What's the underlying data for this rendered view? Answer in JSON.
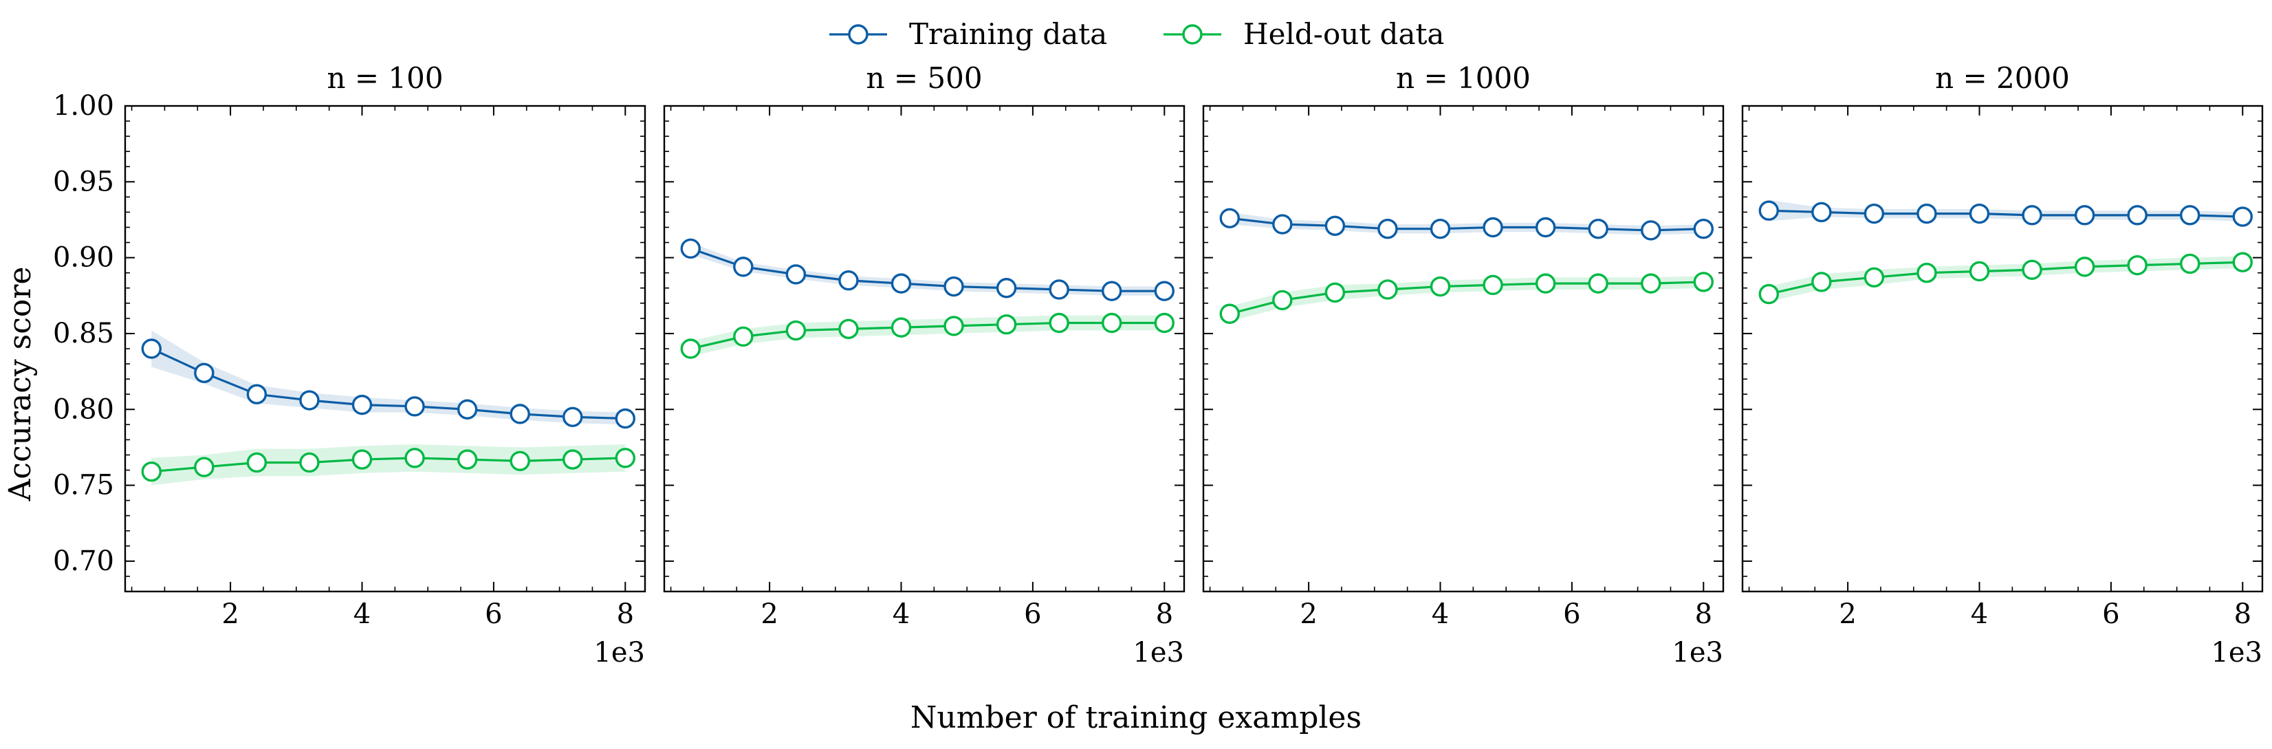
{
  "figure": {
    "xlabel": "Number of training examples",
    "ylabel": "Accuracy score",
    "x_offset_label": "1e3"
  },
  "legend": {
    "items": [
      {
        "label": "Training data",
        "color": "#0C5DA5"
      },
      {
        "label": "Held-out data",
        "color": "#00B945"
      }
    ],
    "placement": "top-center"
  },
  "chart_data": [
    {
      "type": "line",
      "title": "n = 100",
      "x": [
        800,
        1600,
        2400,
        3200,
        4000,
        4800,
        5600,
        6400,
        7200,
        8000
      ],
      "xlim": [
        400,
        8300
      ],
      "ylim": [
        0.68,
        1.0
      ],
      "xticks": [
        2000,
        4000,
        6000,
        8000
      ],
      "xtick_labels": [
        "2",
        "4",
        "6",
        "8"
      ],
      "yticks": [
        0.7,
        0.75,
        0.8,
        0.85,
        0.9,
        0.95,
        1.0
      ],
      "ytick_labels": [
        "0.70",
        "0.75",
        "0.80",
        "0.85",
        "0.90",
        "0.95",
        "1.00"
      ],
      "series": [
        {
          "name": "Training data",
          "color": "#0C5DA5",
          "values": [
            0.84,
            0.824,
            0.81,
            0.806,
            0.803,
            0.802,
            0.8,
            0.797,
            0.795,
            0.794
          ],
          "band": [
            0.012,
            0.007,
            0.006,
            0.005,
            0.005,
            0.004,
            0.004,
            0.004,
            0.004,
            0.004
          ]
        },
        {
          "name": "Held-out data",
          "color": "#00B945",
          "values": [
            0.759,
            0.762,
            0.765,
            0.765,
            0.767,
            0.768,
            0.767,
            0.766,
            0.767,
            0.768
          ],
          "band": [
            0.009,
            0.008,
            0.009,
            0.009,
            0.009,
            0.009,
            0.009,
            0.009,
            0.009,
            0.009
          ]
        }
      ]
    },
    {
      "type": "line",
      "title": "n = 500",
      "x": [
        800,
        1600,
        2400,
        3200,
        4000,
        4800,
        5600,
        6400,
        7200,
        8000
      ],
      "xlim": [
        400,
        8300
      ],
      "ylim": [
        0.68,
        1.0
      ],
      "xticks": [
        2000,
        4000,
        6000,
        8000
      ],
      "xtick_labels": [
        "2",
        "4",
        "6",
        "8"
      ],
      "series": [
        {
          "name": "Training data",
          "color": "#0C5DA5",
          "values": [
            0.906,
            0.894,
            0.889,
            0.885,
            0.883,
            0.881,
            0.88,
            0.879,
            0.878,
            0.878
          ],
          "band": [
            0.004,
            0.003,
            0.003,
            0.003,
            0.003,
            0.003,
            0.003,
            0.003,
            0.003,
            0.003
          ]
        },
        {
          "name": "Held-out data",
          "color": "#00B945",
          "values": [
            0.84,
            0.848,
            0.852,
            0.853,
            0.854,
            0.855,
            0.856,
            0.857,
            0.857,
            0.857
          ],
          "band": [
            0.005,
            0.005,
            0.005,
            0.005,
            0.005,
            0.005,
            0.005,
            0.005,
            0.005,
            0.005
          ]
        }
      ]
    },
    {
      "type": "line",
      "title": "n = 1000",
      "x": [
        800,
        1600,
        2400,
        3200,
        4000,
        4800,
        5600,
        6400,
        7200,
        8000
      ],
      "xlim": [
        400,
        8300
      ],
      "ylim": [
        0.68,
        1.0
      ],
      "xticks": [
        2000,
        4000,
        6000,
        8000
      ],
      "xtick_labels": [
        "2",
        "4",
        "6",
        "8"
      ],
      "series": [
        {
          "name": "Training data",
          "color": "#0C5DA5",
          "values": [
            0.926,
            0.922,
            0.921,
            0.919,
            0.919,
            0.92,
            0.92,
            0.919,
            0.918,
            0.919
          ],
          "band": [
            0.004,
            0.003,
            0.003,
            0.003,
            0.003,
            0.003,
            0.003,
            0.003,
            0.003,
            0.003
          ]
        },
        {
          "name": "Held-out data",
          "color": "#00B945",
          "values": [
            0.863,
            0.872,
            0.877,
            0.879,
            0.881,
            0.882,
            0.883,
            0.883,
            0.883,
            0.884
          ],
          "band": [
            0.005,
            0.005,
            0.005,
            0.004,
            0.004,
            0.004,
            0.004,
            0.004,
            0.004,
            0.004
          ]
        }
      ]
    },
    {
      "type": "line",
      "title": "n = 2000",
      "x": [
        800,
        1600,
        2400,
        3200,
        4000,
        4800,
        5600,
        6400,
        7200,
        8000
      ],
      "xlim": [
        400,
        8300
      ],
      "ylim": [
        0.68,
        1.0
      ],
      "xticks": [
        2000,
        4000,
        6000,
        8000
      ],
      "xtick_labels": [
        "2",
        "4",
        "6",
        "8"
      ],
      "series": [
        {
          "name": "Training data",
          "color": "#0C5DA5",
          "values": [
            0.931,
            0.93,
            0.929,
            0.929,
            0.929,
            0.928,
            0.928,
            0.928,
            0.928,
            0.927
          ],
          "band": [
            0.007,
            0.003,
            0.003,
            0.003,
            0.003,
            0.003,
            0.003,
            0.003,
            0.003,
            0.003
          ]
        },
        {
          "name": "Held-out data",
          "color": "#00B945",
          "values": [
            0.876,
            0.884,
            0.887,
            0.89,
            0.891,
            0.892,
            0.894,
            0.895,
            0.896,
            0.897
          ],
          "band": [
            0.005,
            0.005,
            0.005,
            0.004,
            0.004,
            0.004,
            0.004,
            0.004,
            0.004,
            0.004
          ]
        }
      ]
    }
  ]
}
